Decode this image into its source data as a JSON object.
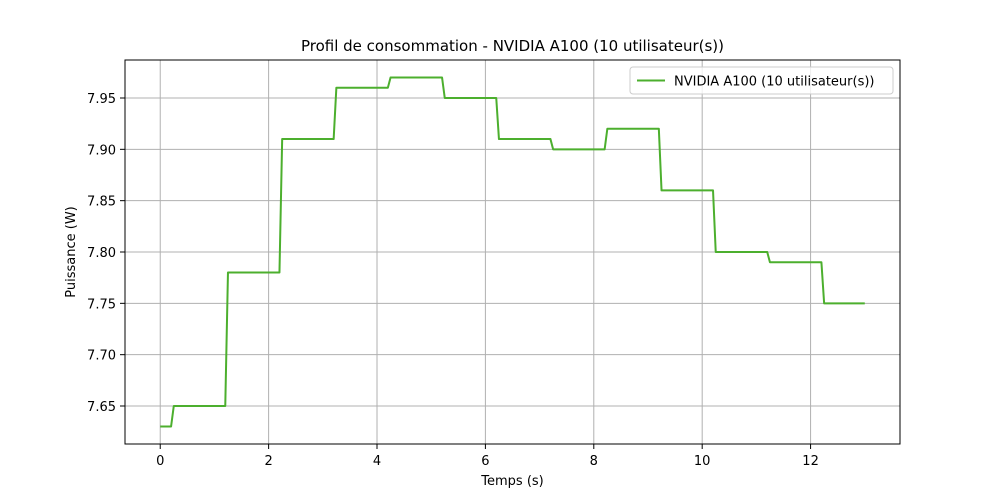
{
  "chart_data": {
    "type": "line",
    "title": "Profil de consommation - NVIDIA A100 (10 utilisateur(s))",
    "xlabel": "Temps (s)",
    "ylabel": "Puissance (W)",
    "xlim": [
      -0.65,
      13.65
    ],
    "ylim": [
      7.613,
      7.987
    ],
    "xticks": [
      0,
      2,
      4,
      6,
      8,
      10,
      12
    ],
    "yticks": [
      7.65,
      7.7,
      7.75,
      7.8,
      7.85,
      7.9,
      7.95
    ],
    "xtick_labels": [
      "0",
      "2",
      "4",
      "6",
      "8",
      "10",
      "12"
    ],
    "ytick_labels": [
      "7.65",
      "7.70",
      "7.75",
      "7.80",
      "7.85",
      "7.90",
      "7.95"
    ],
    "grid": true,
    "legend": "top-right",
    "series": [
      {
        "name": "NVIDIA A100 (10 utilisateur(s))",
        "color": "#4caf2e",
        "x": [
          0,
          0.2,
          0.25,
          1.2,
          1.25,
          2.2,
          2.25,
          3.2,
          3.25,
          4.2,
          4.25,
          5.2,
          5.25,
          6.2,
          6.25,
          7.2,
          7.25,
          8.2,
          8.25,
          9.2,
          9.25,
          10.2,
          10.25,
          11.2,
          11.25,
          12.2,
          12.25,
          13.0
        ],
        "y": [
          7.63,
          7.63,
          7.65,
          7.65,
          7.78,
          7.78,
          7.91,
          7.91,
          7.96,
          7.96,
          7.97,
          7.97,
          7.95,
          7.95,
          7.91,
          7.91,
          7.9,
          7.9,
          7.92,
          7.92,
          7.86,
          7.86,
          7.8,
          7.8,
          7.79,
          7.79,
          7.75,
          7.75
        ]
      }
    ]
  }
}
